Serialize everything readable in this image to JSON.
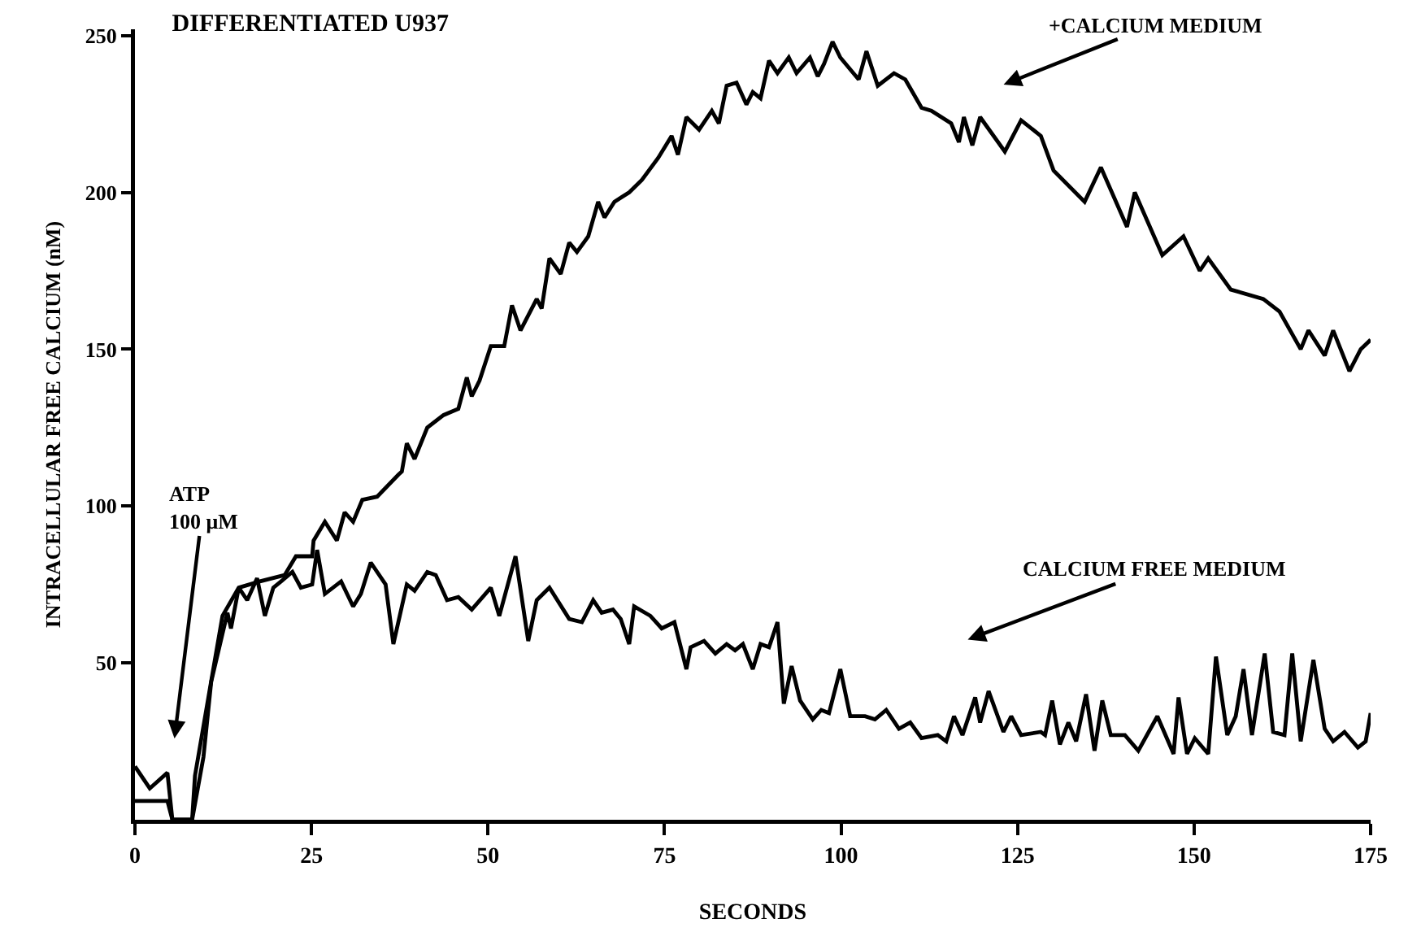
{
  "chart_data": {
    "type": "line",
    "title": "DIFFERENTIATED U937",
    "xlabel": "SECONDS",
    "ylabel": "INTRACELLULAR FREE CALCIUM (nM)",
    "xlim": [
      0,
      175
    ],
    "xticks": [
      0,
      25,
      50,
      75,
      100,
      125,
      150,
      175
    ],
    "ylim": [
      0,
      252
    ],
    "yticks": [
      50,
      100,
      150,
      200,
      250
    ],
    "marker": "none",
    "line_style": "solid",
    "series": [
      {
        "color": "#000000",
        "x": [
          0,
          2.1,
          4.6,
          5.3,
          8.1,
          8.5,
          10.4,
          12.4,
          14.7,
          17.7,
          21.2,
          22.8,
          25.1,
          25.3,
          26.9,
          28.6,
          29.7,
          30.9,
          32.2,
          34.3,
          37.3,
          37.8,
          38.5,
          39.6,
          41.4,
          43.7,
          45.8,
          47.0,
          47.7,
          48.8,
          50.4,
          52.3,
          53.4,
          54.6,
          56.9,
          57.6,
          58.7,
          60.3,
          61.5,
          62.6,
          64.2,
          65.6,
          66.5,
          67.9,
          70.0,
          71.8,
          74.1,
          76.0,
          76.9,
          78.1,
          79.9,
          81.7,
          82.7,
          83.8,
          85.2,
          86.6,
          87.5,
          88.6,
          89.8,
          91.0,
          92.6,
          93.7,
          95.6,
          96.7,
          97.6,
          98.8,
          99.9,
          102.5,
          103.6,
          105.2,
          107.5,
          109.1,
          111.4,
          112.8,
          115.6,
          116.7,
          117.4,
          118.6,
          119.7,
          123.2,
          125.5,
          128.3,
          130.1,
          134.5,
          136.8,
          140.5,
          141.6,
          145.5,
          148.5,
          150.8,
          152.0,
          155.2,
          159.8,
          162.1,
          165.1,
          166.2,
          168.5,
          169.7,
          172.0,
          173.6,
          175
        ],
        "values": [
          17,
          10,
          15,
          0,
          0,
          14,
          39,
          65,
          74,
          76,
          78,
          84,
          84,
          89,
          95,
          89,
          98,
          95,
          102,
          103,
          110,
          111,
          120,
          115,
          125,
          129,
          131,
          141,
          135,
          140,
          151,
          151,
          164,
          156,
          166,
          163,
          179,
          174,
          184,
          181,
          186,
          197,
          192,
          197,
          200,
          204,
          211,
          218,
          212,
          224,
          220,
          226,
          222,
          234,
          235,
          228,
          232,
          230,
          242,
          238,
          243,
          238,
          243,
          237,
          241,
          248,
          243,
          236,
          245,
          234,
          238,
          236,
          227,
          226,
          222,
          216,
          224,
          215,
          224,
          213,
          223,
          218,
          207,
          197,
          208,
          189,
          200,
          180,
          186,
          175,
          179,
          169,
          166,
          162,
          150,
          156,
          148,
          156,
          143,
          150,
          153
        ]
      },
      {
        "color": "#000000",
        "x": [
          0,
          4.6,
          5.3,
          8.1,
          9.7,
          10.8,
          13.1,
          13.6,
          14.7,
          15.9,
          17.3,
          18.4,
          19.6,
          20.7,
          22.3,
          23.5,
          25.1,
          25.8,
          26.9,
          29.2,
          30.9,
          32.0,
          33.4,
          35.5,
          36.6,
          38.5,
          39.6,
          41.4,
          42.6,
          44.2,
          45.8,
          47.7,
          50.4,
          51.6,
          53.9,
          55.7,
          56.9,
          58.7,
          61.5,
          63.3,
          64.9,
          66.1,
          67.7,
          68.8,
          70.0,
          70.7,
          73.0,
          74.6,
          76.4,
          78.1,
          78.7,
          80.6,
          82.2,
          83.8,
          85.0,
          86.1,
          87.5,
          88.6,
          89.8,
          91.0,
          91.9,
          93.0,
          94.2,
          96.0,
          97.2,
          98.3,
          99.9,
          101.3,
          103.4,
          104.8,
          106.4,
          108.2,
          109.8,
          111.4,
          113.7,
          114.9,
          116.0,
          117.2,
          119.0,
          119.7,
          120.9,
          123.0,
          124.1,
          125.5,
          128.3,
          128.9,
          129.9,
          131.0,
          132.2,
          133.3,
          134.7,
          135.9,
          137.0,
          138.2,
          140.2,
          142.1,
          144.8,
          147.1,
          147.8,
          149.0,
          150.1,
          152.0,
          153.1,
          154.7,
          155.9,
          157.0,
          158.2,
          160.0,
          161.2,
          162.8,
          163.9,
          165.1,
          166.9,
          168.5,
          169.7,
          171.3,
          173.2,
          174.3,
          175
        ],
        "values": [
          6,
          6,
          0,
          0,
          20,
          44,
          66,
          61,
          74,
          70,
          77,
          65,
          74,
          76,
          79,
          74,
          75,
          86,
          72,
          76,
          68,
          72,
          82,
          75,
          56,
          75,
          73,
          79,
          78,
          70,
          71,
          67,
          74,
          65,
          84,
          57,
          70,
          74,
          64,
          63,
          70,
          66,
          67,
          64,
          56,
          68,
          65,
          61,
          63,
          48,
          55,
          57,
          53,
          56,
          54,
          56,
          48,
          56,
          55,
          63,
          37,
          49,
          38,
          32,
          35,
          34,
          48,
          33,
          33,
          32,
          35,
          29,
          31,
          26,
          27,
          25,
          33,
          27,
          39,
          31,
          41,
          28,
          33,
          27,
          28,
          27,
          38,
          24,
          31,
          25,
          40,
          22,
          38,
          27,
          27,
          22,
          33,
          21,
          39,
          21,
          26,
          21,
          52,
          27,
          33,
          48,
          27,
          53,
          28,
          27,
          53,
          25,
          51,
          29,
          25,
          28,
          23,
          25,
          34
        ]
      }
    ],
    "annotations": [
      "ATP\n100 μM",
      "+CALCIUM MEDIUM",
      "CALCIUM FREE MEDIUM"
    ]
  }
}
